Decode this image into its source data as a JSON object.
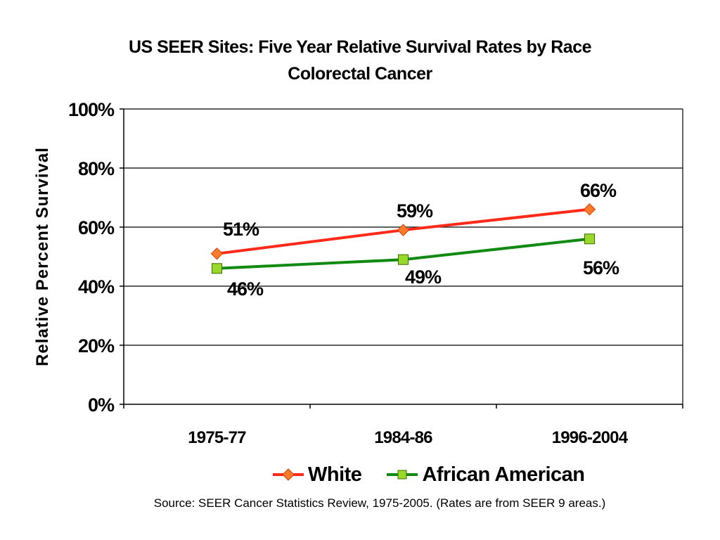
{
  "chart_data": {
    "type": "line",
    "title": "US SEER Sites: Five Year Relative Survival Rates by Race",
    "subtitle": "Colorectal Cancer",
    "xlabel": "",
    "ylabel": "Relative Percent Survival",
    "categories": [
      "1975-77",
      "1984-86",
      "1996-2004"
    ],
    "ylim": [
      0,
      100
    ],
    "yticks": [
      "0%",
      "20%",
      "40%",
      "60%",
      "80%",
      "100%"
    ],
    "ytick_values": [
      0,
      20,
      40,
      60,
      80,
      100
    ],
    "grid": true,
    "legend_position": "bottom",
    "series": [
      {
        "name": "White",
        "values": [
          51,
          59,
          66
        ],
        "labels": [
          "51%",
          "59%",
          "66%"
        ],
        "color": "#ff2a1a",
        "marker_color": "#ff7a2a",
        "marker": "diamond"
      },
      {
        "name": "African American",
        "values": [
          46,
          49,
          56
        ],
        "labels": [
          "46%",
          "49%",
          "56%"
        ],
        "color": "#108a10",
        "marker_color": "#99d92a",
        "marker": "square"
      }
    ]
  },
  "source_note": "Source:  SEER Cancer Statistics Review, 1975-2005.  (Rates are from SEER 9 areas.)"
}
